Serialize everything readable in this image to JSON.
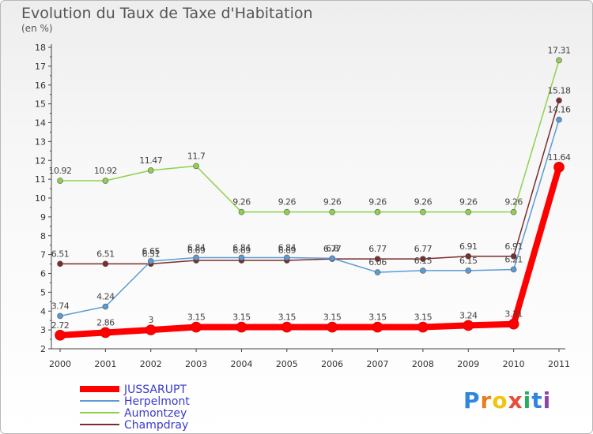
{
  "chart_data": {
    "type": "line",
    "title": "Evolution du Taux de Taxe d'Habitation",
    "subtitle": "(en %)",
    "x": [
      "2000",
      "2001",
      "2002",
      "2003",
      "2004",
      "2005",
      "2006",
      "2007",
      "2008",
      "2009",
      "2010",
      "2011"
    ],
    "ylim": [
      2,
      18
    ],
    "yticks": [
      2,
      3,
      4,
      5,
      6,
      7,
      8,
      9,
      10,
      11,
      12,
      13,
      14,
      15,
      16,
      17,
      18
    ],
    "grid": false,
    "legend": "bottom-left",
    "series": [
      {
        "name": "JUSSARUPT",
        "color": "#ff0000",
        "labels": [
          "2.72",
          "2.86",
          "3",
          "3.15",
          "3.15",
          "3.15",
          "3.15",
          "3.15",
          "3.15",
          "3.24",
          "3.31",
          "11.64"
        ],
        "values": [
          2.72,
          2.86,
          3,
          3.15,
          3.15,
          3.15,
          3.15,
          3.15,
          3.15,
          3.24,
          3.31,
          11.64
        ]
      },
      {
        "name": "Herpelmont",
        "color": "#5b9bd5",
        "labels": [
          "3.74",
          "4.24",
          "6.65",
          "6.84",
          "6.84",
          "6.84",
          "6.8",
          "6.06",
          "6.15",
          "6.15",
          "6.21",
          "14.16"
        ],
        "values": [
          3.74,
          4.24,
          6.65,
          6.84,
          6.84,
          6.84,
          6.8,
          6.06,
          6.15,
          6.15,
          6.21,
          14.16
        ]
      },
      {
        "name": "Aumontzey",
        "color": "#8fd14f",
        "labels": [
          "10.92",
          "10.92",
          "11.47",
          "11.7",
          "9.26",
          "9.26",
          "9.26",
          "9.26",
          "9.26",
          "9.26",
          "9.26",
          "17.31"
        ],
        "values": [
          10.92,
          10.92,
          11.47,
          11.7,
          9.26,
          9.26,
          9.26,
          9.26,
          9.26,
          9.26,
          9.26,
          17.31
        ]
      },
      {
        "name": "Champdray",
        "color": "#7b2c2c",
        "labels": [
          "6.51",
          "6.51",
          "6.51",
          "6.69",
          "6.69",
          "6.69",
          "6.77",
          "6.77",
          "6.77",
          "6.91",
          "6.91",
          "15.18"
        ],
        "values": [
          6.51,
          6.51,
          6.51,
          6.69,
          6.69,
          6.69,
          6.77,
          6.77,
          6.77,
          6.91,
          6.91,
          15.18
        ]
      }
    ]
  },
  "logo": {
    "letters": [
      "P",
      "r",
      "o",
      "x",
      "i",
      "t",
      "i"
    ],
    "colors": [
      "#2e86de",
      "#e67e22",
      "#f1c40f",
      "#e74c3c",
      "#27ae60",
      "#2e86de",
      "#8e44ad"
    ]
  }
}
